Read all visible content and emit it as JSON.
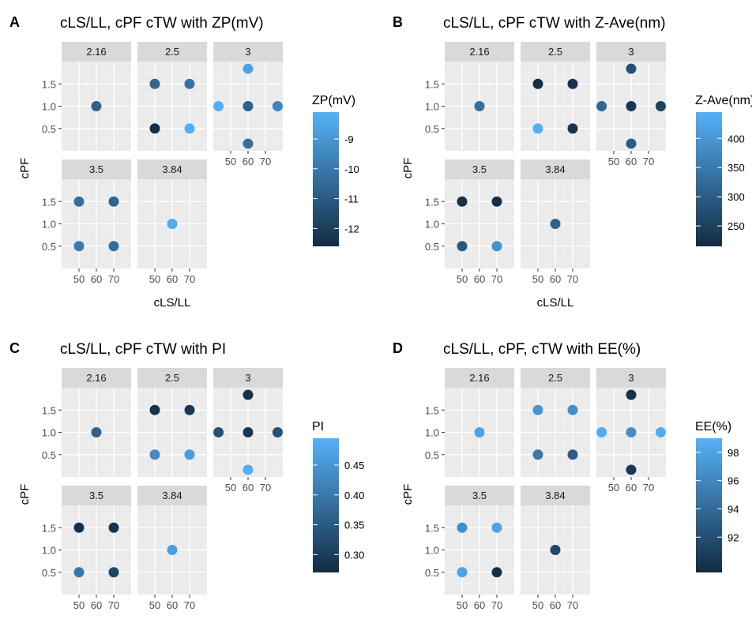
{
  "chart_data": [
    {
      "id": "A",
      "type": "scatter",
      "title": "cLS/LL, cPF cTW with ZP(mV)",
      "xlabel": "cLS/LL",
      "ylabel": "cPF",
      "facet_variable": "cTW",
      "facets": [
        "2.16",
        "2.5",
        "3",
        "3.5",
        "3.84"
      ],
      "x_ticks": [
        "50",
        "60",
        "70"
      ],
      "y_ticks": [
        "0.5",
        "1.0",
        "1.5"
      ],
      "xlim": [
        40,
        80
      ],
      "ylim": [
        0,
        2
      ],
      "legend": {
        "title": "ZP(mV)",
        "position": "right",
        "ticks": [
          "-9",
          "-10",
          "-11",
          "-12"
        ],
        "tick_values": [
          -9,
          -10,
          -11,
          -12
        ],
        "min": -12.6,
        "max": -8.1,
        "low_color": "#132B43",
        "high_color": "#56B1F7"
      },
      "points": [
        {
          "facet": "2.16",
          "x": 60,
          "y": 1.0,
          "value": -10.8
        },
        {
          "facet": "2.5",
          "x": 50,
          "y": 1.5,
          "value": -10.6
        },
        {
          "facet": "2.5",
          "x": 70,
          "y": 1.5,
          "value": -10.2
        },
        {
          "facet": "2.5",
          "x": 50,
          "y": 0.5,
          "value": -12.5
        },
        {
          "facet": "2.5",
          "x": 70,
          "y": 0.5,
          "value": -8.2
        },
        {
          "facet": "3",
          "x": 43,
          "y": 1.0,
          "value": -8.2
        },
        {
          "facet": "3",
          "x": 60,
          "y": 1.84,
          "value": -8.6
        },
        {
          "facet": "3",
          "x": 60,
          "y": 1.0,
          "value": -10.8
        },
        {
          "facet": "3",
          "x": 77,
          "y": 1.0,
          "value": -9.6
        },
        {
          "facet": "3",
          "x": 60,
          "y": 0.16,
          "value": -10.3
        },
        {
          "facet": "3.5",
          "x": 50,
          "y": 1.5,
          "value": -10.3
        },
        {
          "facet": "3.5",
          "x": 70,
          "y": 1.5,
          "value": -10.7
        },
        {
          "facet": "3.5",
          "x": 50,
          "y": 0.5,
          "value": -9.9
        },
        {
          "facet": "3.5",
          "x": 70,
          "y": 0.5,
          "value": -10.4
        },
        {
          "facet": "3.84",
          "x": 60,
          "y": 1.0,
          "value": -8.3
        }
      ]
    },
    {
      "id": "B",
      "type": "scatter",
      "title": "cLS/LL, cPF cTW with Z-Ave(nm)",
      "xlabel": "cLS/LL",
      "ylabel": "cPF",
      "facet_variable": "cTW",
      "facets": [
        "2.16",
        "2.5",
        "3",
        "3.5",
        "3.84"
      ],
      "x_ticks": [
        "50",
        "60",
        "70"
      ],
      "y_ticks": [
        "0.5",
        "1.0",
        "1.5"
      ],
      "xlim": [
        40,
        80
      ],
      "ylim": [
        0,
        2
      ],
      "legend": {
        "title": "Z-Ave(nm)",
        "position": "right",
        "ticks": [
          "400",
          "350",
          "300",
          "250"
        ],
        "tick_values": [
          400,
          350,
          300,
          250
        ],
        "min": 215,
        "max": 445,
        "low_color": "#132B43",
        "high_color": "#56B1F7"
      },
      "points": [
        {
          "facet": "2.16",
          "x": 60,
          "y": 1.0,
          "value": 330
        },
        {
          "facet": "2.5",
          "x": 50,
          "y": 1.5,
          "value": 220
        },
        {
          "facet": "2.5",
          "x": 70,
          "y": 1.5,
          "value": 225
        },
        {
          "facet": "2.5",
          "x": 50,
          "y": 0.5,
          "value": 440
        },
        {
          "facet": "2.5",
          "x": 70,
          "y": 0.5,
          "value": 230
        },
        {
          "facet": "3",
          "x": 43,
          "y": 1.0,
          "value": 320
        },
        {
          "facet": "3",
          "x": 60,
          "y": 1.84,
          "value": 280
        },
        {
          "facet": "3",
          "x": 60,
          "y": 1.0,
          "value": 235
        },
        {
          "facet": "3",
          "x": 77,
          "y": 1.0,
          "value": 255
        },
        {
          "facet": "3",
          "x": 60,
          "y": 0.16,
          "value": 300
        },
        {
          "facet": "3.5",
          "x": 50,
          "y": 1.5,
          "value": 225
        },
        {
          "facet": "3.5",
          "x": 70,
          "y": 1.5,
          "value": 220
        },
        {
          "facet": "3.5",
          "x": 50,
          "y": 0.5,
          "value": 290
        },
        {
          "facet": "3.5",
          "x": 70,
          "y": 0.5,
          "value": 390
        },
        {
          "facet": "3.84",
          "x": 60,
          "y": 1.0,
          "value": 310
        }
      ]
    },
    {
      "id": "C",
      "type": "scatter",
      "title": "cLS/LL, cPF cTW with PI",
      "xlabel": "cLS/LL",
      "ylabel": "cPF",
      "facet_variable": "cTW",
      "facets": [
        "2.16",
        "2.5",
        "3",
        "3.5",
        "3.84"
      ],
      "x_ticks": [
        "50",
        "60",
        "70"
      ],
      "y_ticks": [
        "0.5",
        "1.0",
        "1.5"
      ],
      "xlim": [
        40,
        80
      ],
      "ylim": [
        0,
        2
      ],
      "legend": {
        "title": "PI",
        "position": "right",
        "ticks": [
          "0.45",
          "0.40",
          "0.35",
          "0.30"
        ],
        "tick_values": [
          0.45,
          0.4,
          0.35,
          0.3
        ],
        "min": 0.27,
        "max": 0.495,
        "low_color": "#132B43",
        "high_color": "#56B1F7"
      },
      "points": [
        {
          "facet": "2.16",
          "x": 60,
          "y": 1.0,
          "value": 0.36
        },
        {
          "facet": "2.5",
          "x": 50,
          "y": 1.5,
          "value": 0.28
        },
        {
          "facet": "2.5",
          "x": 70,
          "y": 1.5,
          "value": 0.29
        },
        {
          "facet": "2.5",
          "x": 50,
          "y": 0.5,
          "value": 0.43
        },
        {
          "facet": "2.5",
          "x": 70,
          "y": 0.5,
          "value": 0.46
        },
        {
          "facet": "3",
          "x": 43,
          "y": 1.0,
          "value": 0.33
        },
        {
          "facet": "3",
          "x": 60,
          "y": 1.84,
          "value": 0.28
        },
        {
          "facet": "3",
          "x": 60,
          "y": 1.0,
          "value": 0.29
        },
        {
          "facet": "3",
          "x": 77,
          "y": 1.0,
          "value": 0.33
        },
        {
          "facet": "3",
          "x": 60,
          "y": 0.16,
          "value": 0.49
        },
        {
          "facet": "3.5",
          "x": 50,
          "y": 1.5,
          "value": 0.28
        },
        {
          "facet": "3.5",
          "x": 70,
          "y": 1.5,
          "value": 0.285
        },
        {
          "facet": "3.5",
          "x": 50,
          "y": 0.5,
          "value": 0.4
        },
        {
          "facet": "3.5",
          "x": 70,
          "y": 0.5,
          "value": 0.31
        },
        {
          "facet": "3.84",
          "x": 60,
          "y": 1.0,
          "value": 0.465
        }
      ]
    },
    {
      "id": "D",
      "type": "scatter",
      "title": "cLS/LL, cPF, cTW with EE(%)",
      "xlabel": "cLS/LL",
      "ylabel": "cPF",
      "facet_variable": "cTW",
      "facets": [
        "2.16",
        "2.5",
        "3",
        "3.5",
        "3.84"
      ],
      "x_ticks": [
        "50",
        "60",
        "70"
      ],
      "y_ticks": [
        "0.5",
        "1.0",
        "1.5"
      ],
      "xlim": [
        40,
        80
      ],
      "ylim": [
        0,
        2
      ],
      "legend": {
        "title": "EE(%)",
        "position": "right",
        "ticks": [
          "98",
          "96",
          "94",
          "92"
        ],
        "tick_values": [
          98,
          96,
          94,
          92
        ],
        "min": 89.5,
        "max": 99,
        "low_color": "#132B43",
        "high_color": "#56B1F7"
      },
      "points": [
        {
          "facet": "2.16",
          "x": 60,
          "y": 1.0,
          "value": 98.0
        },
        {
          "facet": "2.5",
          "x": 50,
          "y": 1.5,
          "value": 97.0
        },
        {
          "facet": "2.5",
          "x": 70,
          "y": 1.5,
          "value": 96.5
        },
        {
          "facet": "2.5",
          "x": 50,
          "y": 0.5,
          "value": 95.0
        },
        {
          "facet": "2.5",
          "x": 70,
          "y": 0.5,
          "value": 93.0
        },
        {
          "facet": "3",
          "x": 43,
          "y": 1.0,
          "value": 98.6
        },
        {
          "facet": "3",
          "x": 60,
          "y": 1.84,
          "value": 90.0
        },
        {
          "facet": "3",
          "x": 60,
          "y": 1.0,
          "value": 96.5
        },
        {
          "facet": "3",
          "x": 77,
          "y": 1.0,
          "value": 98.6
        },
        {
          "facet": "3",
          "x": 60,
          "y": 0.16,
          "value": 90.5
        },
        {
          "facet": "3.5",
          "x": 50,
          "y": 1.5,
          "value": 96.5
        },
        {
          "facet": "3.5",
          "x": 70,
          "y": 1.5,
          "value": 98.0
        },
        {
          "facet": "3.5",
          "x": 50,
          "y": 0.5,
          "value": 98.0
        },
        {
          "facet": "3.5",
          "x": 70,
          "y": 0.5,
          "value": 89.8
        },
        {
          "facet": "3.84",
          "x": 60,
          "y": 1.0,
          "value": 91.5
        }
      ]
    }
  ]
}
